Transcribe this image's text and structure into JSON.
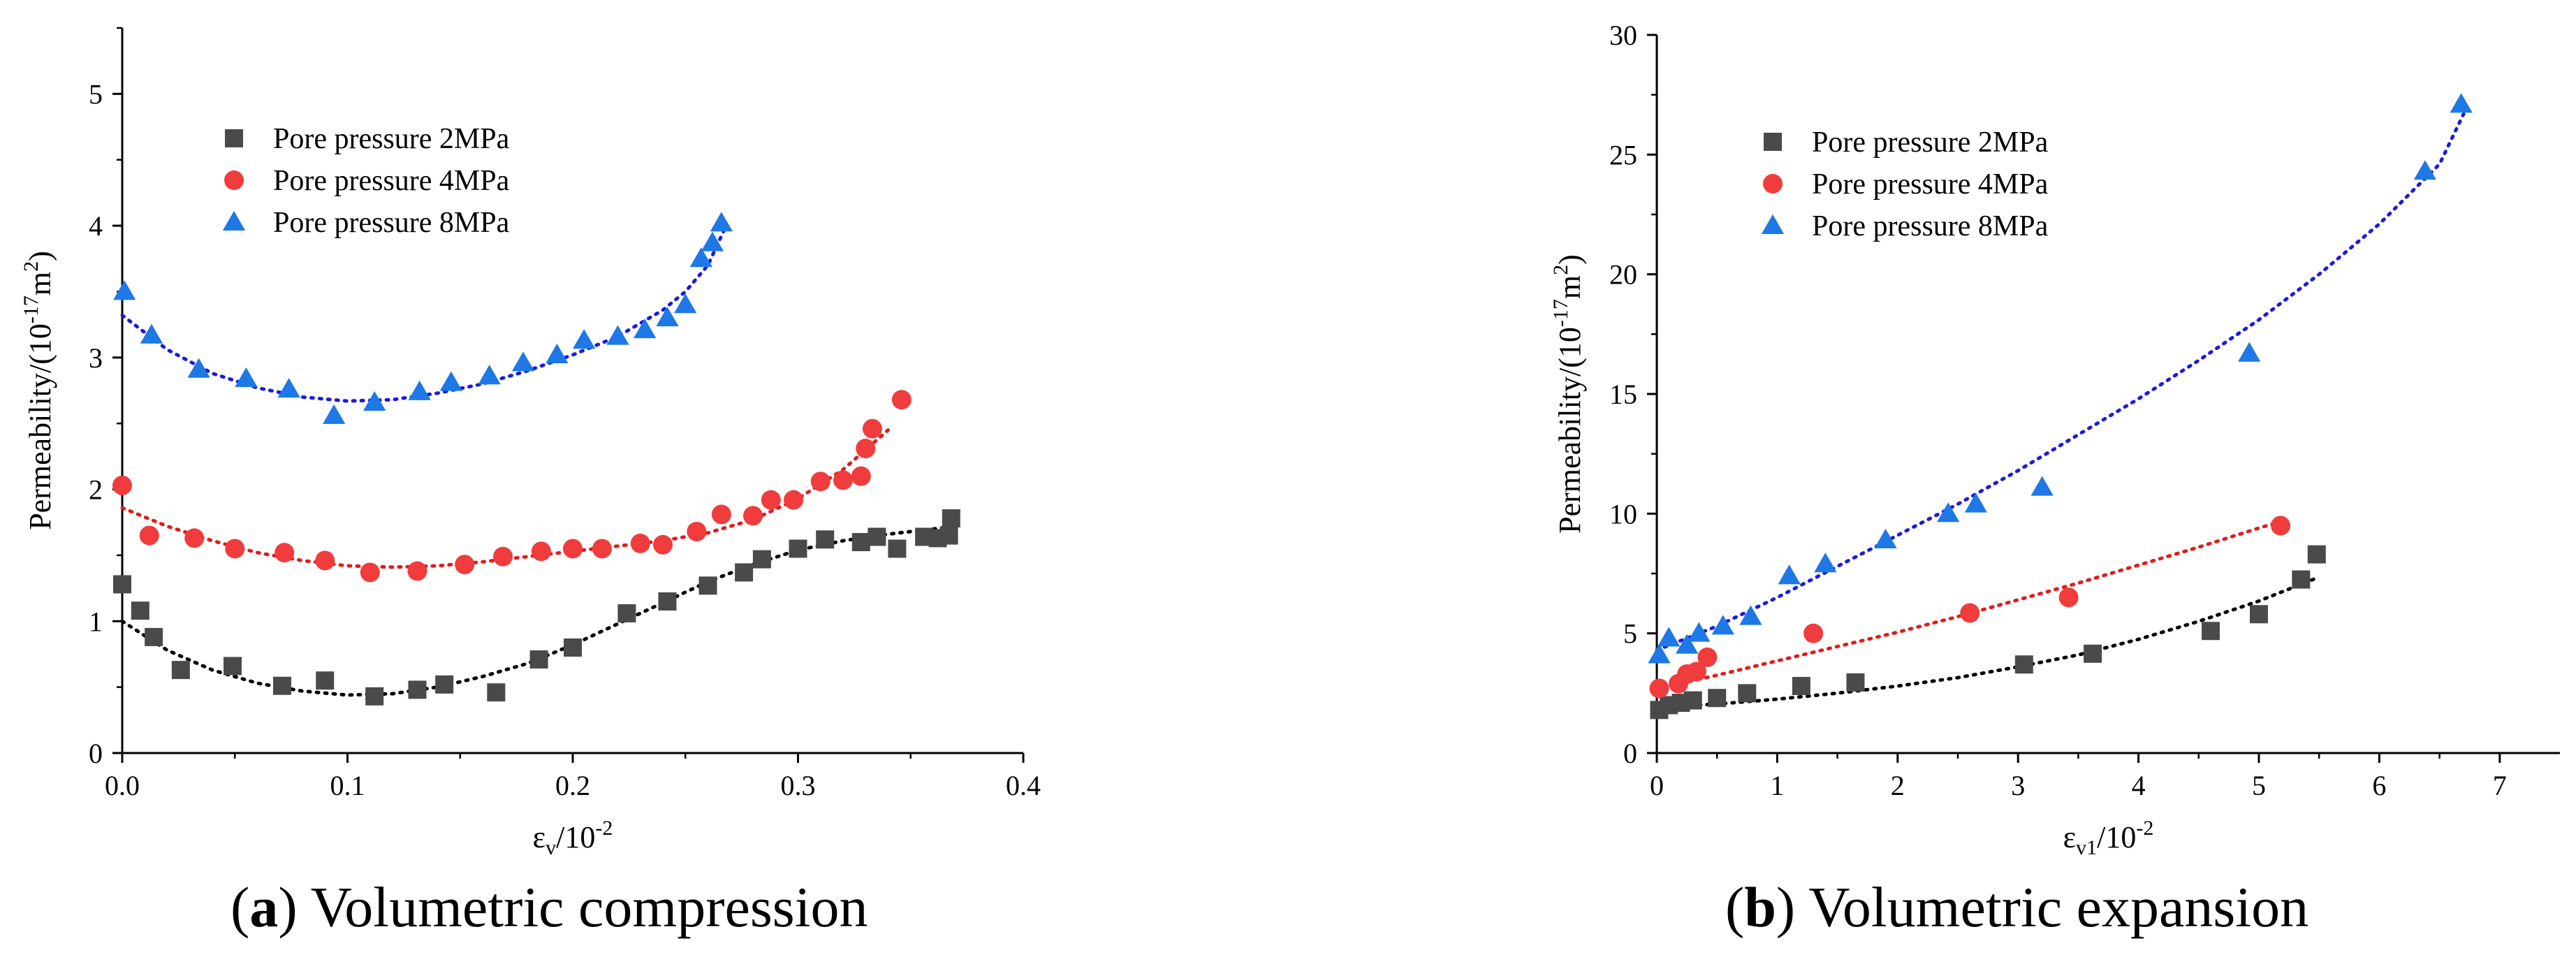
{
  "chart_data": [
    {
      "type": "scatter",
      "panel": "a",
      "caption_label": "a",
      "caption_text": "Volumetric compression",
      "ylabel_main": "Permeability/(10",
      "ylabel_exp": "-17",
      "ylabel_unit": "m",
      "ylabel_unit_exp": "2",
      "ylabel_close": ")",
      "xlabel_main": "ε",
      "xlabel_sub": "v",
      "xlabel_rest": "/10",
      "xlabel_exp": "-2",
      "xlim": [
        0,
        0.4
      ],
      "ylim": [
        0,
        5.5
      ],
      "xticks": [
        0.0,
        0.1,
        0.2,
        0.3,
        0.4
      ],
      "xtick_labels": [
        "0.0",
        "0.1",
        "0.2",
        "0.3",
        "0.4"
      ],
      "yticks": [
        0,
        1,
        2,
        3,
        4,
        5
      ],
      "ytick_labels": [
        "0",
        "1",
        "2",
        "3",
        "4",
        "5"
      ],
      "legend_position": "top-left",
      "series": [
        {
          "name": "Pore pressure 2MPa",
          "color": "#4a4a4a",
          "marker": "square",
          "trend_color": "#000000",
          "x": [
            0.0,
            0.008,
            0.014,
            0.026,
            0.049,
            0.071,
            0.09,
            0.112,
            0.131,
            0.143,
            0.166,
            0.185,
            0.2,
            0.224,
            0.242,
            0.26,
            0.276,
            0.284,
            0.3,
            0.312,
            0.328,
            0.335,
            0.344,
            0.356,
            0.362,
            0.367,
            0.368
          ],
          "y": [
            1.28,
            1.08,
            0.88,
            0.63,
            0.66,
            0.51,
            0.55,
            0.43,
            0.48,
            0.52,
            0.46,
            0.71,
            0.8,
            1.06,
            1.15,
            1.27,
            1.37,
            1.47,
            1.55,
            1.62,
            1.6,
            1.64,
            1.55,
            1.64,
            1.63,
            1.65,
            1.78
          ],
          "trend_x": [
            0.0,
            0.02,
            0.04,
            0.06,
            0.08,
            0.1,
            0.12,
            0.14,
            0.16,
            0.18,
            0.2,
            0.22,
            0.24,
            0.26,
            0.28,
            0.3,
            0.32,
            0.34,
            0.36,
            0.37
          ],
          "trend_y": [
            1.0,
            0.78,
            0.63,
            0.53,
            0.47,
            0.44,
            0.45,
            0.5,
            0.58,
            0.68,
            0.82,
            0.98,
            1.14,
            1.3,
            1.43,
            1.54,
            1.61,
            1.66,
            1.7,
            1.72
          ]
        },
        {
          "name": "Pore pressure 4MPa",
          "color": "#f03c3c",
          "marker": "circle",
          "trend_color": "#e41a1a",
          "x": [
            0.0,
            0.012,
            0.032,
            0.05,
            0.072,
            0.09,
            0.11,
            0.131,
            0.152,
            0.169,
            0.186,
            0.2,
            0.213,
            0.23,
            0.24,
            0.255,
            0.266,
            0.28,
            0.288,
            0.298,
            0.31,
            0.32,
            0.328,
            0.33,
            0.333,
            0.346
          ],
          "y": [
            2.03,
            1.65,
            1.63,
            1.55,
            1.52,
            1.46,
            1.37,
            1.38,
            1.43,
            1.49,
            1.53,
            1.55,
            1.55,
            1.59,
            1.58,
            1.68,
            1.81,
            1.8,
            1.92,
            1.92,
            2.06,
            2.07,
            2.1,
            2.31,
            2.46,
            2.68
          ],
          "trend_x": [
            0.0,
            0.02,
            0.04,
            0.06,
            0.08,
            0.1,
            0.12,
            0.14,
            0.16,
            0.18,
            0.2,
            0.22,
            0.24,
            0.26,
            0.28,
            0.3,
            0.32,
            0.34
          ],
          "trend_y": [
            1.86,
            1.72,
            1.61,
            1.52,
            1.46,
            1.42,
            1.41,
            1.42,
            1.45,
            1.49,
            1.53,
            1.57,
            1.61,
            1.67,
            1.77,
            1.93,
            2.15,
            2.45
          ]
        },
        {
          "name": "Pore pressure 8MPa",
          "color": "#1e78e6",
          "marker": "triangle",
          "trend_color": "#1a1ae0",
          "x": [
            0.001,
            0.013,
            0.034,
            0.055,
            0.074,
            0.094,
            0.112,
            0.132,
            0.146,
            0.163,
            0.178,
            0.193,
            0.205,
            0.22,
            0.232,
            0.242,
            0.25,
            0.257,
            0.262,
            0.266
          ],
          "y": [
            3.5,
            3.17,
            2.91,
            2.84,
            2.76,
            2.56,
            2.66,
            2.74,
            2.81,
            2.86,
            2.96,
            3.02,
            3.13,
            3.16,
            3.21,
            3.3,
            3.4,
            3.75,
            3.87,
            4.02
          ],
          "trend_x": [
            0.0,
            0.02,
            0.04,
            0.06,
            0.08,
            0.1,
            0.12,
            0.14,
            0.16,
            0.18,
            0.2,
            0.22,
            0.24,
            0.25,
            0.26,
            0.267
          ],
          "trend_y": [
            3.32,
            3.06,
            2.88,
            2.77,
            2.7,
            2.67,
            2.68,
            2.73,
            2.8,
            2.9,
            3.02,
            3.16,
            3.36,
            3.5,
            3.7,
            3.96
          ]
        }
      ]
    },
    {
      "type": "scatter",
      "panel": "b",
      "caption_label": "b",
      "caption_text": "Volumetric expansion",
      "ylabel_main": "Permeability/(10",
      "ylabel_exp": "-17",
      "ylabel_unit": "m",
      "ylabel_unit_exp": "2",
      "ylabel_close": ")",
      "xlabel_main": "ε",
      "xlabel_sub": "v1",
      "xlabel_rest": "/10",
      "xlabel_exp": "-2",
      "xlim": [
        0,
        7.5
      ],
      "ylim": [
        0,
        30
      ],
      "xticks": [
        0,
        1,
        2,
        3,
        4,
        5,
        6,
        7
      ],
      "xtick_labels": [
        "0",
        "1",
        "2",
        "3",
        "4",
        "5",
        "6",
        "7"
      ],
      "yticks": [
        0,
        5,
        10,
        15,
        20,
        25,
        30
      ],
      "ytick_labels": [
        "0",
        "5",
        "10",
        "15",
        "20",
        "25",
        "30"
      ],
      "legend_position": "top-left",
      "series": [
        {
          "name": "Pore pressure 2MPa",
          "color": "#4a4a4a",
          "marker": "square",
          "trend_color": "#000000",
          "x": [
            0.02,
            0.1,
            0.2,
            0.3,
            0.5,
            0.75,
            1.2,
            1.65,
            3.05,
            3.62,
            4.6,
            5.0,
            5.35,
            5.48
          ],
          "y": [
            1.8,
            2.0,
            2.1,
            2.2,
            2.3,
            2.5,
            2.8,
            2.95,
            3.7,
            4.15,
            5.1,
            5.8,
            7.25,
            8.3
          ],
          "trend_x": [
            0.0,
            0.5,
            1.0,
            1.5,
            2.0,
            2.5,
            3.0,
            3.5,
            4.0,
            4.5,
            5.0,
            5.5
          ],
          "trend_y": [
            1.9,
            2.05,
            2.25,
            2.5,
            2.8,
            3.15,
            3.6,
            4.1,
            4.75,
            5.5,
            6.35,
            7.35
          ]
        },
        {
          "name": "Pore pressure 4MPa",
          "color": "#f03c3c",
          "marker": "circle",
          "trend_color": "#e41a1a",
          "x": [
            0.02,
            0.18,
            0.25,
            0.33,
            0.42,
            1.3,
            2.6,
            3.42,
            5.18
          ],
          "y": [
            2.7,
            2.9,
            3.3,
            3.4,
            4.0,
            5.0,
            5.85,
            6.5,
            9.5
          ],
          "trend_x": [
            0.0,
            0.5,
            1.0,
            1.5,
            2.0,
            2.5,
            3.0,
            3.5,
            4.0,
            4.5,
            5.0,
            5.2
          ],
          "trend_y": [
            2.7,
            3.25,
            3.85,
            4.45,
            5.05,
            5.7,
            6.4,
            7.1,
            7.85,
            8.6,
            9.4,
            9.7
          ]
        },
        {
          "name": "Pore pressure 8MPa",
          "color": "#1e78e6",
          "marker": "triangle",
          "trend_color": "#1a1ae0",
          "x": [
            0.02,
            0.1,
            0.25,
            0.35,
            0.55,
            0.78,
            1.1,
            1.4,
            1.9,
            2.42,
            2.65,
            3.2,
            4.92,
            6.38,
            6.68
          ],
          "y": [
            4.1,
            4.8,
            4.5,
            5.0,
            5.3,
            5.7,
            7.4,
            7.9,
            8.9,
            10.0,
            10.4,
            11.1,
            16.7,
            24.3,
            27.1
          ],
          "trend_x": [
            0.0,
            0.5,
            1.0,
            1.5,
            2.0,
            2.5,
            3.0,
            3.5,
            4.0,
            4.5,
            5.0,
            5.5,
            6.0,
            6.5,
            6.7
          ],
          "trend_y": [
            4.3,
            5.3,
            6.5,
            7.8,
            9.1,
            10.4,
            11.8,
            13.3,
            14.8,
            16.4,
            18.1,
            20.0,
            22.1,
            24.6,
            26.7
          ]
        }
      ]
    }
  ]
}
